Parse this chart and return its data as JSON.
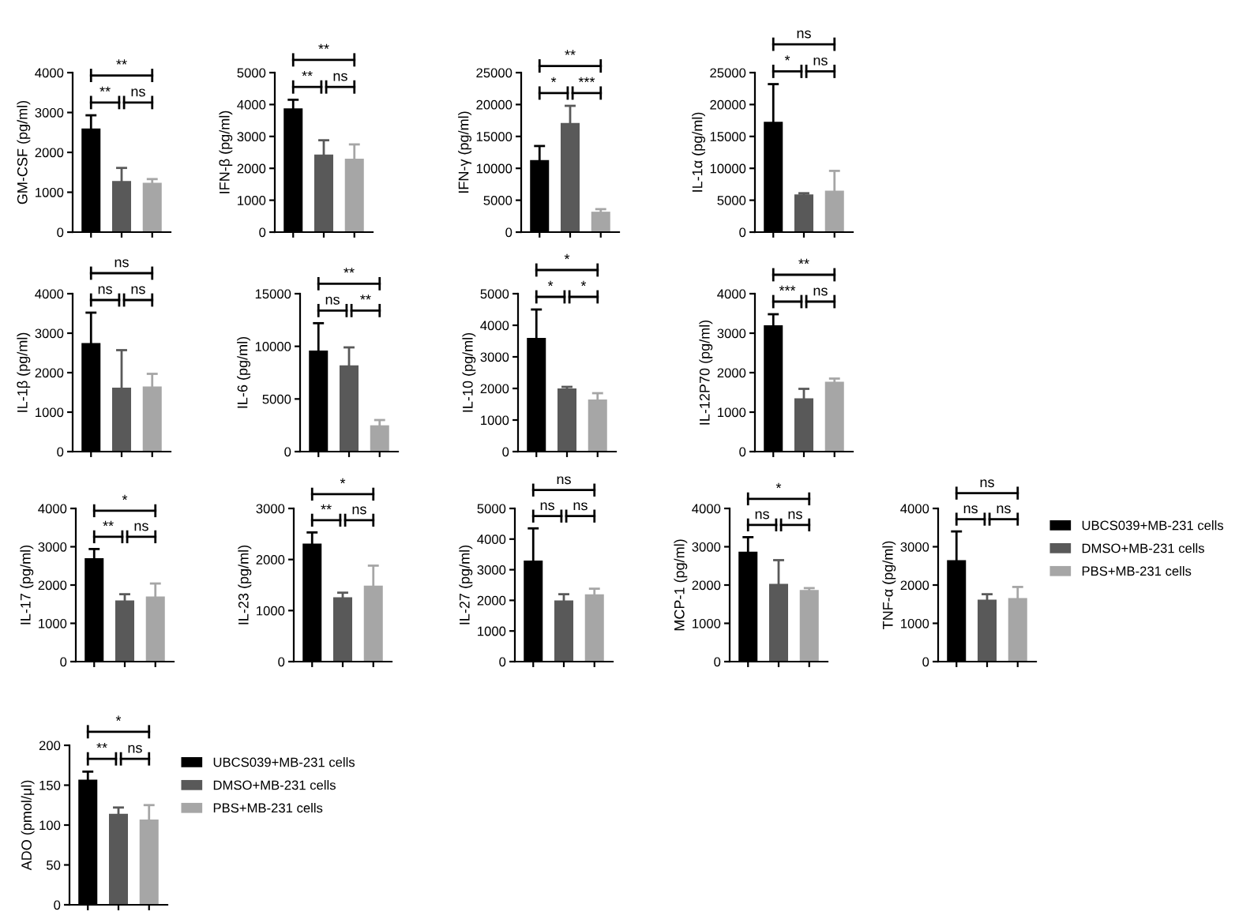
{
  "chart_data": [
    {
      "type": "bar",
      "categories": [
        null,
        null,
        null
      ],
      "ylabel": "GM-CSF (pg/ml)",
      "ylim": [
        0,
        4000
      ],
      "yticks": [
        0,
        1000,
        2000,
        3000,
        4000
      ],
      "annotations": [
        "**",
        "**",
        "ns"
      ],
      "series": [
        {
          "color": "#000000",
          "values": [
            2600,
            null,
            null
          ],
          "errors": [
            330,
            null,
            null
          ]
        },
        {
          "color": "#595959",
          "values": [
            null,
            1280,
            null
          ],
          "errors": [
            null,
            330,
            null
          ]
        },
        {
          "color": "#a6a6a6",
          "values": [
            null,
            null,
            1240
          ],
          "errors": [
            null,
            null,
            90
          ]
        }
      ]
    },
    {
      "type": "bar",
      "categories": [
        null,
        null,
        null
      ],
      "ylabel": "IFN-β (pg/ml)",
      "ylim": [
        0,
        5000
      ],
      "yticks": [
        0,
        1000,
        2000,
        3000,
        4000,
        5000
      ],
      "annotations": [
        "**",
        "**",
        "ns"
      ],
      "series": [
        {
          "color": "#000000",
          "values": [
            3880,
            null,
            null
          ],
          "errors": [
            270,
            null,
            null
          ]
        },
        {
          "color": "#595959",
          "values": [
            null,
            2430,
            null
          ],
          "errors": [
            null,
            450,
            null
          ]
        },
        {
          "color": "#a6a6a6",
          "values": [
            null,
            null,
            2300
          ],
          "errors": [
            null,
            null,
            450
          ]
        }
      ]
    },
    {
      "type": "bar",
      "categories": [
        null,
        null,
        null
      ],
      "ylabel": "IFN-γ (pg/ml)",
      "ylim": [
        0,
        25000
      ],
      "yticks": [
        0,
        5000,
        10000,
        15000,
        20000,
        25000
      ],
      "annotations": [
        "**",
        "*",
        "***"
      ],
      "series": [
        {
          "color": "#000000",
          "values": [
            11300,
            null,
            null
          ],
          "errors": [
            2200,
            null,
            null
          ]
        },
        {
          "color": "#595959",
          "values": [
            null,
            17100,
            null
          ],
          "errors": [
            null,
            2700,
            null
          ]
        },
        {
          "color": "#a6a6a6",
          "values": [
            null,
            null,
            3200
          ],
          "errors": [
            null,
            null,
            400
          ]
        }
      ]
    },
    {
      "type": "bar",
      "categories": [
        null,
        null,
        null
      ],
      "ylabel": "IL-1α (pg/ml)",
      "ylim": [
        0,
        25000
      ],
      "yticks": [
        0,
        5000,
        10000,
        15000,
        20000,
        25000
      ],
      "annotations": [
        "ns",
        "*",
        "ns"
      ],
      "series": [
        {
          "color": "#000000",
          "values": [
            17300,
            null,
            null
          ],
          "errors": [
            5900,
            null,
            null
          ]
        },
        {
          "color": "#595959",
          "values": [
            null,
            5900,
            null
          ],
          "errors": [
            null,
            200,
            null
          ]
        },
        {
          "color": "#a6a6a6",
          "values": [
            null,
            null,
            6500
          ],
          "errors": [
            null,
            null,
            3100
          ]
        }
      ]
    },
    {
      "type": "bar",
      "categories": [
        null,
        null,
        null
      ],
      "ylabel": "IL-1β (pg/ml)",
      "ylim": [
        0,
        4000
      ],
      "yticks": [
        0,
        1000,
        2000,
        3000,
        4000
      ],
      "annotations": [
        "ns",
        "ns",
        "ns"
      ],
      "series": [
        {
          "color": "#000000",
          "values": [
            2750,
            null,
            null
          ],
          "errors": [
            770,
            null,
            null
          ]
        },
        {
          "color": "#595959",
          "values": [
            null,
            1620,
            null
          ],
          "errors": [
            null,
            950,
            null
          ]
        },
        {
          "color": "#a6a6a6",
          "values": [
            null,
            null,
            1650
          ],
          "errors": [
            null,
            null,
            320
          ]
        }
      ]
    },
    {
      "type": "bar",
      "categories": [
        null,
        null,
        null
      ],
      "ylabel": "IL-6 (pg/ml)",
      "ylim": [
        0,
        15000
      ],
      "yticks": [
        0,
        5000,
        10000,
        15000
      ],
      "annotations": [
        "**",
        "ns",
        "**"
      ],
      "series": [
        {
          "color": "#000000",
          "values": [
            9600,
            null,
            null
          ],
          "errors": [
            2600,
            null,
            null
          ]
        },
        {
          "color": "#595959",
          "values": [
            null,
            8200,
            null
          ],
          "errors": [
            null,
            1700,
            null
          ]
        },
        {
          "color": "#a6a6a6",
          "values": [
            null,
            null,
            2500
          ],
          "errors": [
            null,
            null,
            500
          ]
        }
      ]
    },
    {
      "type": "bar",
      "categories": [
        null,
        null,
        null
      ],
      "ylabel": "IL-10 (pg/ml)",
      "ylim": [
        0,
        5000
      ],
      "yticks": [
        0,
        1000,
        2000,
        3000,
        4000,
        5000
      ],
      "annotations": [
        "*",
        "*",
        "*"
      ],
      "series": [
        {
          "color": "#000000",
          "values": [
            3600,
            null,
            null
          ],
          "errors": [
            900,
            null,
            null
          ]
        },
        {
          "color": "#595959",
          "values": [
            null,
            2000,
            null
          ],
          "errors": [
            null,
            50,
            null
          ]
        },
        {
          "color": "#a6a6a6",
          "values": [
            null,
            null,
            1650
          ],
          "errors": [
            null,
            null,
            200
          ]
        }
      ]
    },
    {
      "type": "bar",
      "categories": [
        null,
        null,
        null
      ],
      "ylabel": "IL-12P70 (pg/ml)",
      "ylim": [
        0,
        4000
      ],
      "yticks": [
        0,
        1000,
        2000,
        3000,
        4000
      ],
      "annotations": [
        "**",
        "***",
        "ns"
      ],
      "series": [
        {
          "color": "#000000",
          "values": [
            3200,
            null,
            null
          ],
          "errors": [
            280,
            null,
            null
          ]
        },
        {
          "color": "#595959",
          "values": [
            null,
            1350,
            null
          ],
          "errors": [
            null,
            240,
            null
          ]
        },
        {
          "color": "#a6a6a6",
          "values": [
            null,
            null,
            1770
          ],
          "errors": [
            null,
            null,
            80
          ]
        }
      ]
    },
    {
      "type": "bar",
      "categories": [
        null,
        null,
        null
      ],
      "ylabel": "IL-17 (pg/ml)",
      "ylim": [
        0,
        4000
      ],
      "yticks": [
        0,
        1000,
        2000,
        3000,
        4000
      ],
      "annotations": [
        "*",
        "**",
        "ns"
      ],
      "series": [
        {
          "color": "#000000",
          "values": [
            2700,
            null,
            null
          ],
          "errors": [
            240,
            null,
            null
          ]
        },
        {
          "color": "#595959",
          "values": [
            null,
            1600,
            null
          ],
          "errors": [
            null,
            160,
            null
          ]
        },
        {
          "color": "#a6a6a6",
          "values": [
            null,
            null,
            1700
          ],
          "errors": [
            null,
            null,
            340
          ]
        }
      ]
    },
    {
      "type": "bar",
      "categories": [
        null,
        null,
        null
      ],
      "ylabel": "IL-23 (pg/ml)",
      "ylim": [
        0,
        3000
      ],
      "yticks": [
        0,
        1000,
        2000,
        3000
      ],
      "annotations": [
        "*",
        "**",
        "ns"
      ],
      "series": [
        {
          "color": "#000000",
          "values": [
            2310,
            null,
            null
          ],
          "errors": [
            220,
            null,
            null
          ]
        },
        {
          "color": "#595959",
          "values": [
            null,
            1260,
            null
          ],
          "errors": [
            null,
            90,
            null
          ]
        },
        {
          "color": "#a6a6a6",
          "values": [
            null,
            null,
            1490
          ],
          "errors": [
            null,
            null,
            390
          ]
        }
      ]
    },
    {
      "type": "bar",
      "categories": [
        null,
        null,
        null
      ],
      "ylabel": "IL-27 (pg/ml)",
      "ylim": [
        0,
        5000
      ],
      "yticks": [
        0,
        1000,
        2000,
        3000,
        4000,
        5000
      ],
      "annotations": [
        "ns",
        "ns",
        "ns"
      ],
      "series": [
        {
          "color": "#000000",
          "values": [
            3300,
            null,
            null
          ],
          "errors": [
            1050,
            null,
            null
          ]
        },
        {
          "color": "#595959",
          "values": [
            null,
            2000,
            null
          ],
          "errors": [
            null,
            200,
            null
          ]
        },
        {
          "color": "#a6a6a6",
          "values": [
            null,
            null,
            2200
          ],
          "errors": [
            null,
            null,
            180
          ]
        }
      ]
    },
    {
      "type": "bar",
      "categories": [
        null,
        null,
        null
      ],
      "ylabel": "MCP-1 (pg/ml)",
      "ylim": [
        0,
        4000
      ],
      "yticks": [
        0,
        1000,
        2000,
        3000,
        4000
      ],
      "annotations": [
        "*",
        "ns",
        "ns"
      ],
      "series": [
        {
          "color": "#000000",
          "values": [
            2870,
            null,
            null
          ],
          "errors": [
            380,
            null,
            null
          ]
        },
        {
          "color": "#595959",
          "values": [
            null,
            2030,
            null
          ],
          "errors": [
            null,
            620,
            null
          ]
        },
        {
          "color": "#a6a6a6",
          "values": [
            null,
            null,
            1870
          ],
          "errors": [
            null,
            null,
            50
          ]
        }
      ]
    },
    {
      "type": "bar",
      "categories": [
        null,
        null,
        null
      ],
      "ylabel": "TNF-α (pg/ml)",
      "ylim": [
        0,
        4000
      ],
      "yticks": [
        0,
        1000,
        2000,
        3000,
        4000
      ],
      "annotations": [
        "ns",
        "ns",
        "ns"
      ],
      "legend": "right",
      "series": [
        {
          "name": "UBCS039+MB-231 cells",
          "color": "#000000",
          "values": [
            2650,
            null,
            null
          ],
          "errors": [
            750,
            null,
            null
          ]
        },
        {
          "name": "DMSO+MB-231 cells",
          "color": "#595959",
          "values": [
            null,
            1620,
            null
          ],
          "errors": [
            null,
            140,
            null
          ]
        },
        {
          "name": "PBS+MB-231 cells",
          "color": "#a6a6a6",
          "values": [
            null,
            null,
            1660
          ],
          "errors": [
            null,
            null,
            290
          ]
        }
      ]
    },
    {
      "type": "bar",
      "categories": [
        null,
        null,
        null
      ],
      "ylabel": "ADO (pmol/μl)",
      "ylim": [
        0,
        200
      ],
      "yticks": [
        0,
        50,
        100,
        150,
        200
      ],
      "annotations": [
        "*",
        "**",
        "ns"
      ],
      "legend": "right",
      "series": [
        {
          "name": "UBCS039+MB-231 cells",
          "color": "#000000",
          "values": [
            157,
            null,
            null
          ],
          "errors": [
            10,
            null,
            null
          ]
        },
        {
          "name": "DMSO+MB-231 cells",
          "color": "#595959",
          "values": [
            null,
            114,
            null
          ],
          "errors": [
            null,
            8,
            null
          ]
        },
        {
          "name": "PBS+MB-231 cells",
          "color": "#a6a6a6",
          "values": [
            null,
            null,
            107
          ],
          "errors": [
            null,
            null,
            18
          ]
        }
      ]
    }
  ]
}
